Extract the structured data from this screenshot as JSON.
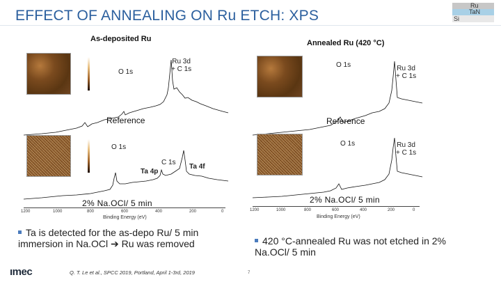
{
  "slide": {
    "title": "EFFECT OF ANNEALING ON Ru ETCH: XPS",
    "page_number": "7",
    "citation": "Q. T. Le et al., SPCC 2019, Portland, April 1-3rd, 2019",
    "logo": "ımec"
  },
  "layer_stack": {
    "top": "Ru",
    "middle": "TaN",
    "bottom": "Si"
  },
  "left_panel": {
    "header": "As-deposited Ru",
    "reference_label": "Reference",
    "treatment_label": "2% Na.OCl/ 5 min",
    "top_peaks": {
      "o1s": "O 1s",
      "ru_c": "Ru 3d\n+ C 1s"
    },
    "bottom_peaks": {
      "o1s": "O 1s",
      "c1s": "C 1s",
      "ta4p": "Ta 4p",
      "ta4f": "Ta 4f"
    },
    "x_ticks": [
      "1200",
      "1000",
      "800",
      "600",
      "400",
      "200",
      "0"
    ],
    "x_label": "Binding Energy (eV)"
  },
  "right_panel": {
    "header": "Annealed Ru (420 °C)",
    "reference_label": "Reference",
    "treatment_label": "2% Na.OCl/ 5 min",
    "top_peaks": {
      "o1s": "O 1s",
      "ru_c": "Ru 3d\n+ C 1s"
    },
    "bottom_peaks": {
      "o1s": "O 1s",
      "ru_c": "Ru 3d\n+ C 1s"
    },
    "x_ticks": [
      "1200",
      "1000",
      "800",
      "600",
      "400",
      "200",
      "0"
    ],
    "x_label": "Binding Energy (eV)"
  },
  "bullets": {
    "left": "Ta is detected for the as-depo Ru/ 5 min immersion in Na.OCl ➔ Ru was removed",
    "right": "420 °C-annealed Ru was not etched in 2% Na.OCl/ 5 min"
  },
  "colors": {
    "title": "#2b5f9e",
    "bullet": "#4a7bbd",
    "spectrum": "#111111"
  }
}
